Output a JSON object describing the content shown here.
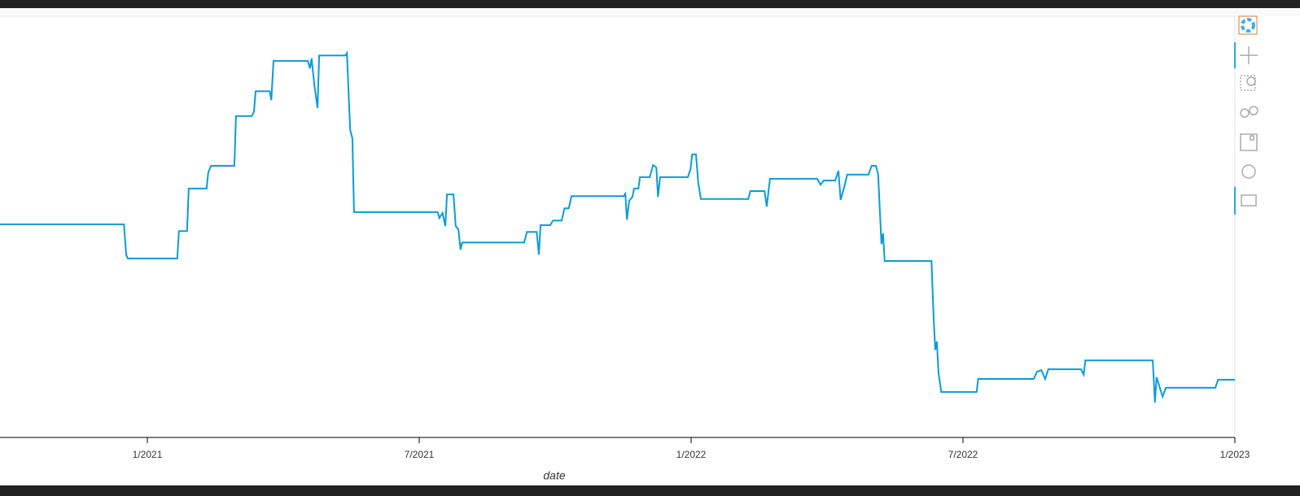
{
  "chart_data": {
    "type": "line",
    "x_label": "date",
    "color": "#0b9bd7",
    "xlim": [
      2020.729,
      2023.0
    ],
    "ylim": [
      0,
      100
    ],
    "xticks": [
      {
        "value": 2021.0,
        "label": "1/2021"
      },
      {
        "value": 2021.5,
        "label": "7/2021"
      },
      {
        "value": 2022.0,
        "label": "1/2022"
      },
      {
        "value": 2022.5,
        "label": "7/2022"
      },
      {
        "value": 2023.0,
        "label": "1/2023"
      }
    ],
    "x": [
      2020.729,
      2020.957,
      2020.961,
      2020.964,
      2021.055,
      2021.058,
      2021.073,
      2021.076,
      2021.109,
      2021.112,
      2021.117,
      2021.16,
      2021.163,
      2021.192,
      2021.196,
      2021.199,
      2021.225,
      2021.228,
      2021.232,
      2021.295,
      2021.299,
      2021.302,
      2021.307,
      2021.313,
      2021.316,
      2021.364,
      2021.367,
      2021.37,
      2021.373,
      2021.377,
      2021.38,
      2021.534,
      2021.537,
      2021.543,
      2021.548,
      2021.551,
      2021.563,
      2021.567,
      2021.572,
      2021.576,
      2021.579,
      2021.693,
      2021.698,
      2021.716,
      2021.72,
      2021.723,
      2021.741,
      2021.746,
      2021.762,
      2021.767,
      2021.775,
      2021.78,
      2021.876,
      2021.879,
      2021.882,
      2021.886,
      2021.892,
      2021.895,
      2021.903,
      2021.906,
      2021.924,
      2021.93,
      2021.936,
      2021.939,
      2021.943,
      2021.994,
      2021.999,
      2022.002,
      2022.009,
      2022.013,
      2022.018,
      2022.105,
      2022.109,
      2022.135,
      2022.139,
      2022.145,
      2022.232,
      2022.238,
      2022.244,
      2022.265,
      2022.271,
      2022.275,
      2022.283,
      2022.287,
      2022.326,
      2022.332,
      2022.34,
      2022.344,
      2022.35,
      2022.353,
      2022.356,
      2022.442,
      2022.446,
      2022.449,
      2022.452,
      2022.455,
      2022.46,
      2022.525,
      2022.528,
      2022.63,
      2022.636,
      2022.644,
      2022.651,
      2022.657,
      2022.717,
      2022.722,
      2022.725,
      2022.849,
      2022.853,
      2022.856,
      2022.867,
      2022.873,
      2022.964,
      2022.969,
      2023.0
    ],
    "values": [
      50.6,
      50.6,
      43.4,
      42.5,
      42.5,
      49.0,
      49.0,
      59.1,
      59.1,
      62.9,
      64.5,
      64.5,
      76.3,
      76.3,
      77.4,
      82.2,
      82.2,
      80.1,
      89.4,
      89.4,
      87.6,
      90.0,
      83.8,
      78.2,
      90.7,
      90.7,
      91.3,
      82.0,
      73.0,
      71.0,
      53.5,
      53.5,
      52.1,
      53.3,
      50.2,
      57.7,
      57.7,
      50.2,
      49.4,
      44.6,
      46.3,
      46.3,
      48.8,
      48.8,
      43.4,
      50.4,
      50.4,
      51.5,
      51.5,
      54.4,
      54.4,
      57.3,
      57.3,
      57.9,
      51.7,
      56.2,
      57.1,
      59.1,
      59.1,
      61.8,
      61.8,
      64.7,
      64.1,
      57.1,
      61.8,
      61.8,
      63.7,
      67.2,
      67.2,
      60.6,
      56.6,
      56.6,
      58.5,
      58.5,
      54.8,
      61.4,
      61.4,
      60.0,
      61.0,
      61.0,
      63.3,
      56.4,
      60.2,
      62.4,
      62.4,
      64.5,
      64.5,
      62.4,
      45.9,
      48.5,
      41.9,
      41.9,
      28.6,
      20.8,
      22.8,
      15.4,
      10.8,
      10.8,
      13.9,
      13.9,
      15.6,
      16.0,
      13.9,
      16.2,
      16.2,
      14.9,
      18.3,
      18.3,
      8.3,
      14.3,
      9.7,
      11.8,
      11.8,
      13.7,
      13.7
    ]
  }
}
